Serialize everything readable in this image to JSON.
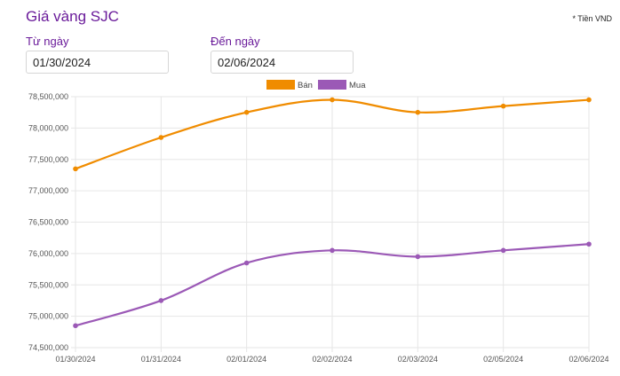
{
  "header": {
    "title": "Giá vàng SJC",
    "unit_note": "* Tiền VND"
  },
  "filters": {
    "from_label": "Từ ngày",
    "from_value": "01/30/2024",
    "to_label": "Đến ngày",
    "to_value": "02/06/2024"
  },
  "chart_data": {
    "type": "line",
    "title": "Giá vàng SJC",
    "xlabel": "",
    "ylabel": "",
    "categories": [
      "01/30/2024",
      "01/31/2024",
      "02/01/2024",
      "02/02/2024",
      "02/03/2024",
      "02/05/2024",
      "02/06/2024"
    ],
    "series": [
      {
        "name": "Bán",
        "color": "#f08c00",
        "values": [
          77350000,
          77850000,
          78250000,
          78450000,
          78250000,
          78350000,
          78450000
        ]
      },
      {
        "name": "Mua",
        "color": "#9b59b6",
        "values": [
          74850000,
          75250000,
          75850000,
          76050000,
          75950000,
          76050000,
          76150000
        ]
      }
    ],
    "ylim": [
      74500000,
      78500000
    ],
    "yticks": [
      "74,500,000",
      "75,000,000",
      "75,500,000",
      "76,000,000",
      "76,500,000",
      "77,000,000",
      "77,500,000",
      "78,000,000",
      "78,500,000"
    ],
    "grid": true,
    "legend": "top-center"
  }
}
